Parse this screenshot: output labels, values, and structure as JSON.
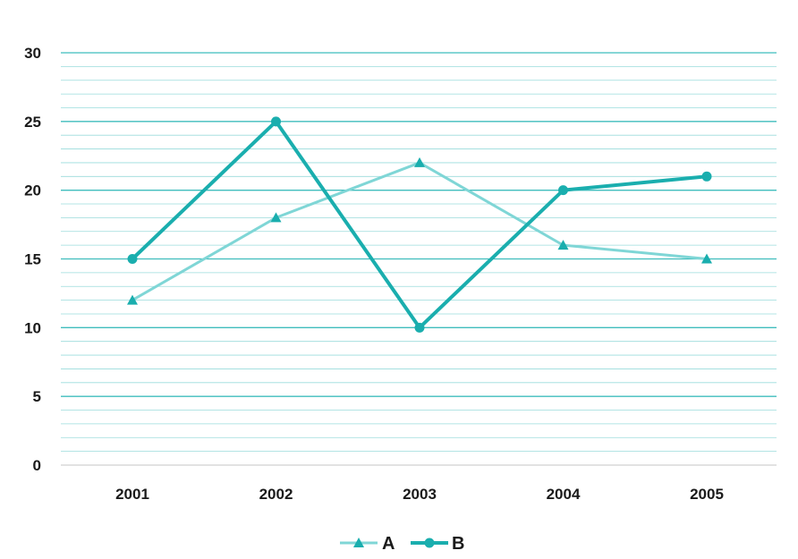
{
  "chart_data": {
    "type": "line",
    "title": "",
    "xlabel": "",
    "ylabel": "",
    "categories": [
      "2001",
      "2002",
      "2003",
      "2004",
      "2005"
    ],
    "ylim": [
      0,
      30
    ],
    "yticks": [
      "0",
      "5",
      "10",
      "15",
      "20",
      "25",
      "30"
    ],
    "grid": true,
    "legend_position": "bottom",
    "series": [
      {
        "name": "A",
        "values": [
          12,
          18,
          22,
          16,
          15
        ],
        "color": "#7fd6d6",
        "marker": "triangle"
      },
      {
        "name": "B",
        "values": [
          15,
          25,
          10,
          20,
          21
        ],
        "color": "#1aaeae",
        "marker": "circle"
      }
    ]
  }
}
